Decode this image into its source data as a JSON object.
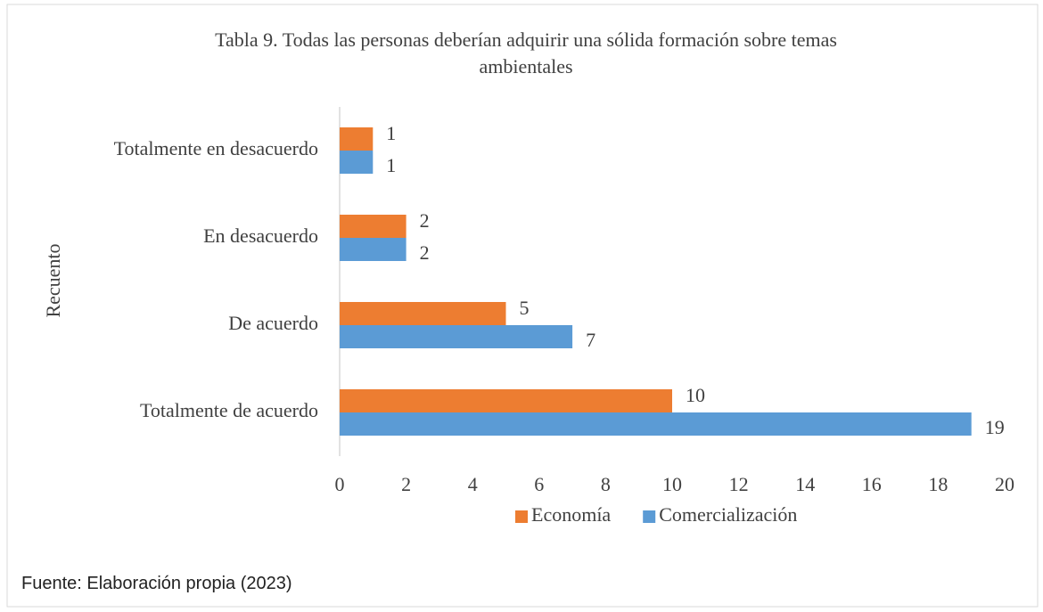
{
  "chart_data": {
    "type": "barh",
    "title": "Tabla 9. Todas las personas deberían adquirir una sólida formación sobre temas ambientales",
    "y_label": "Recuento",
    "source": "Fuente: Elaboración propia (2023)",
    "categories": [
      "Totalmente en desacuerdo",
      "En desacuerdo",
      "De acuerdo",
      "Totalmente de acuerdo"
    ],
    "series": [
      {
        "name": "Economía",
        "color": "#ED7D31",
        "values": [
          1,
          2,
          5,
          10
        ]
      },
      {
        "name": "Comercialización",
        "color": "#5B9BD5",
        "values": [
          1,
          2,
          7,
          19
        ]
      }
    ],
    "xlim": [
      0,
      20
    ],
    "xticks": [
      0,
      2,
      4,
      6,
      8,
      10,
      12,
      14,
      16,
      18,
      20
    ],
    "legend": "bottom"
  }
}
